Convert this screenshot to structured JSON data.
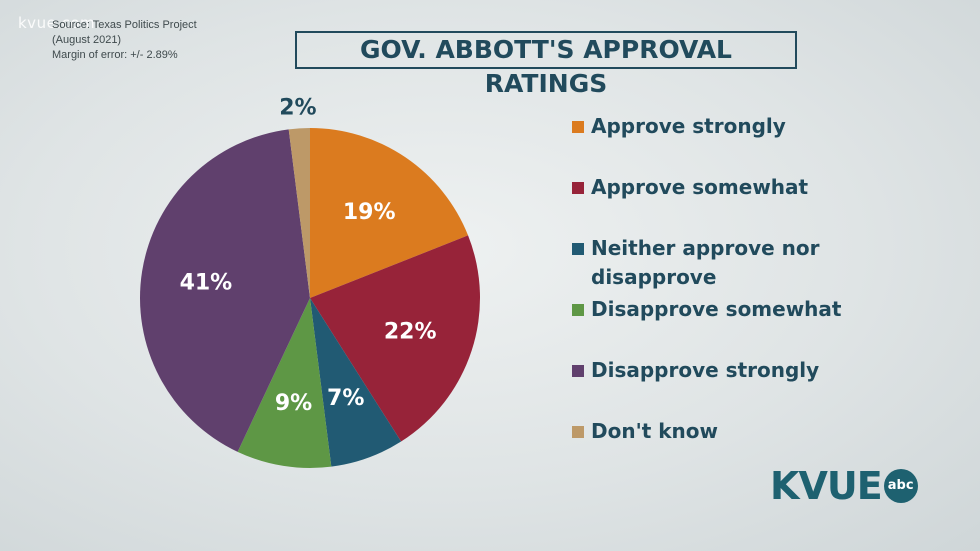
{
  "watermark": "kvue.com",
  "source": {
    "line1": "Source: Texas Politics Project",
    "line2": "(August 2021)",
    "line3": "Margin of error: +/- 2.89%"
  },
  "chart_data": {
    "type": "pie",
    "title": "GOV. ABBOTT'S APPROVAL RATINGS",
    "categories": [
      "Approve strongly",
      "Approve somewhat",
      "Neither approve nor disapprove",
      "Disapprove somewhat",
      "Disapprove strongly",
      "Don't know"
    ],
    "values": [
      19,
      22,
      7,
      9,
      41,
      2
    ],
    "data_labels": [
      "19%",
      "22%",
      "7%",
      "9%",
      "41%",
      "2%"
    ],
    "colors": [
      "#db7b1f",
      "#972339",
      "#215a73",
      "#5e9745",
      "#60406d",
      "#bd9968"
    ],
    "legend_position": "right"
  },
  "legend": {
    "items": [
      {
        "line1": "Approve strongly",
        "line2": ""
      },
      {
        "line1": "Approve somewhat",
        "line2": ""
      },
      {
        "line1": "Neither approve nor",
        "line2": "disapprove"
      },
      {
        "line1": "Disapprove somewhat",
        "line2": ""
      },
      {
        "line1": "Disapprove strongly",
        "line2": ""
      },
      {
        "line1": "Don't know",
        "line2": ""
      }
    ]
  },
  "logo": {
    "text": "KVUE",
    "badge": "abc"
  }
}
